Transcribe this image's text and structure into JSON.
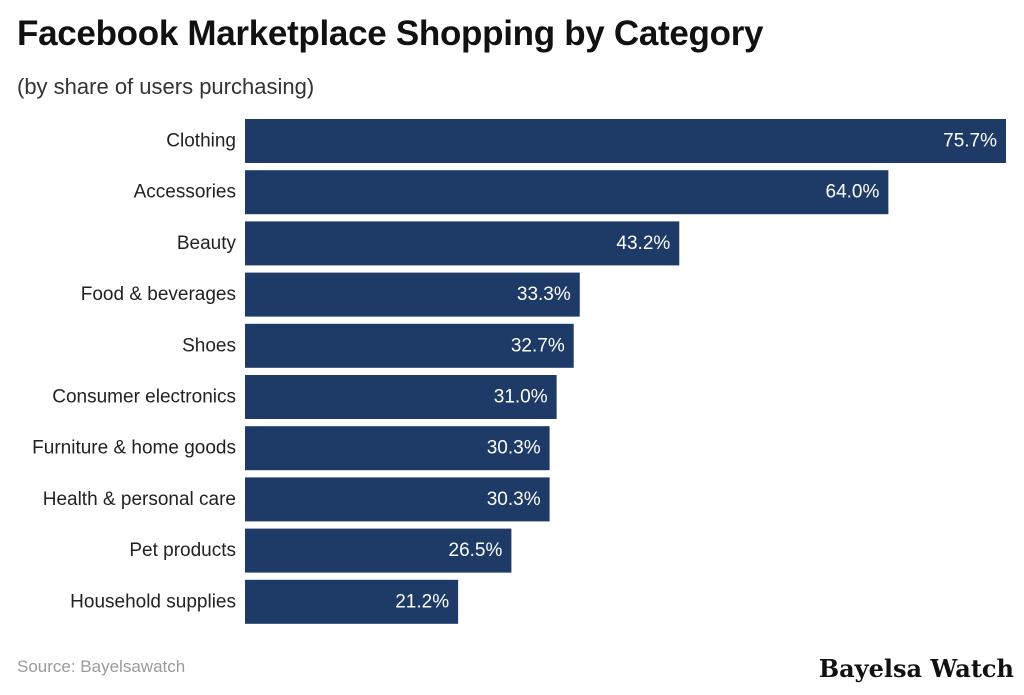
{
  "chart_data": {
    "type": "bar",
    "orientation": "horizontal",
    "title": "Facebook Marketplace Shopping by Category",
    "subtitle": "(by share of users purchasing)",
    "categories": [
      "Clothing",
      "Accessories",
      "Beauty",
      "Food & beverages",
      "Shoes",
      "Consumer electronics",
      "Furniture & home goods",
      "Health & personal care",
      "Pet products",
      "Household supplies"
    ],
    "values": [
      75.7,
      64.0,
      43.2,
      33.3,
      32.7,
      31.0,
      30.3,
      30.3,
      26.5,
      21.2
    ],
    "value_labels": [
      "75.7%",
      "64.0%",
      "43.2%",
      "33.3%",
      "32.7%",
      "31.0%",
      "30.3%",
      "30.3%",
      "26.5%",
      "21.2%"
    ],
    "xlim": [
      0,
      75.7
    ],
    "grid": false,
    "legend": "none",
    "bar_color": "#1e3a66"
  },
  "source": "Source: Bayelsawatch",
  "brand": "Bayelsa Watch"
}
